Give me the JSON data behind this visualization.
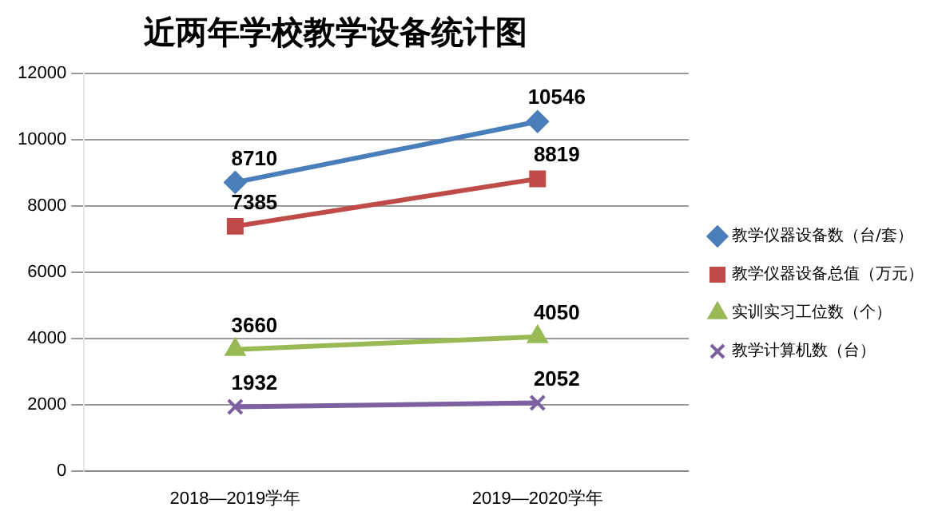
{
  "chart_data": {
    "type": "line",
    "title": "近两年学校教学设备统计图",
    "categories": [
      "2018—2019学年",
      "2019—2020学年"
    ],
    "series": [
      {
        "name": "教学仪器设备数（台/套）",
        "color": "#4a7ebb",
        "marker": "diamond",
        "values": [
          8710,
          10546
        ]
      },
      {
        "name": "教学仪器设备总值（万元）",
        "color": "#be4b48",
        "marker": "square",
        "values": [
          7385,
          8819
        ]
      },
      {
        "name": "实训实习工位数（个）",
        "color": "#98b954",
        "marker": "triangle",
        "values": [
          3660,
          4050
        ]
      },
      {
        "name": "教学计算机数（台）",
        "color": "#7d60a0",
        "marker": "cross",
        "values": [
          1932,
          2052
        ]
      }
    ],
    "ylim": [
      0,
      12000
    ],
    "yticks": [
      0,
      2000,
      4000,
      6000,
      8000,
      10000,
      12000
    ],
    "grid": "y",
    "legend": "right",
    "data_labels": true
  }
}
